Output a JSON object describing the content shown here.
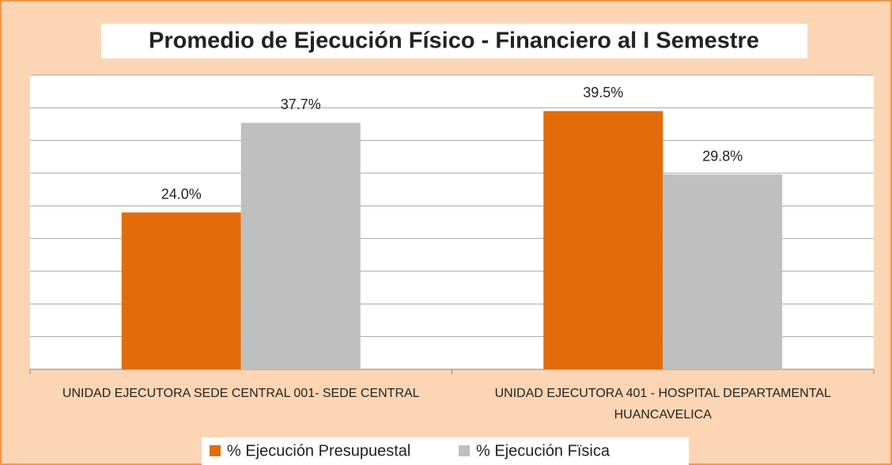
{
  "chart_data": {
    "type": "bar",
    "title": "Promedio de Ejecución Físico - Financiero al I Semestre",
    "categories": [
      "UNIDAD EJECUTORA SEDE CENTRAL 001- SEDE CENTRAL",
      "UNIDAD EJECUTORA 401 - HOSPITAL DEPARTAMENTAL HUANCAVELICA"
    ],
    "series": [
      {
        "name": "% Ejecución Presupuestal",
        "color": "#e36c0a",
        "values": [
          24.0,
          39.5
        ],
        "value_labels": [
          "24.0%",
          "39.5%"
        ]
      },
      {
        "name": "% Ejecución Fïsica",
        "color": "#bfbfbf",
        "values": [
          37.7,
          29.8
        ],
        "value_labels": [
          "37.7%",
          "29.8%"
        ]
      }
    ],
    "ylim": [
      0,
      45
    ],
    "yticks": [
      0,
      5,
      10,
      15,
      20,
      25,
      30,
      35,
      40,
      45
    ],
    "grid": true,
    "legend": "bottom"
  }
}
